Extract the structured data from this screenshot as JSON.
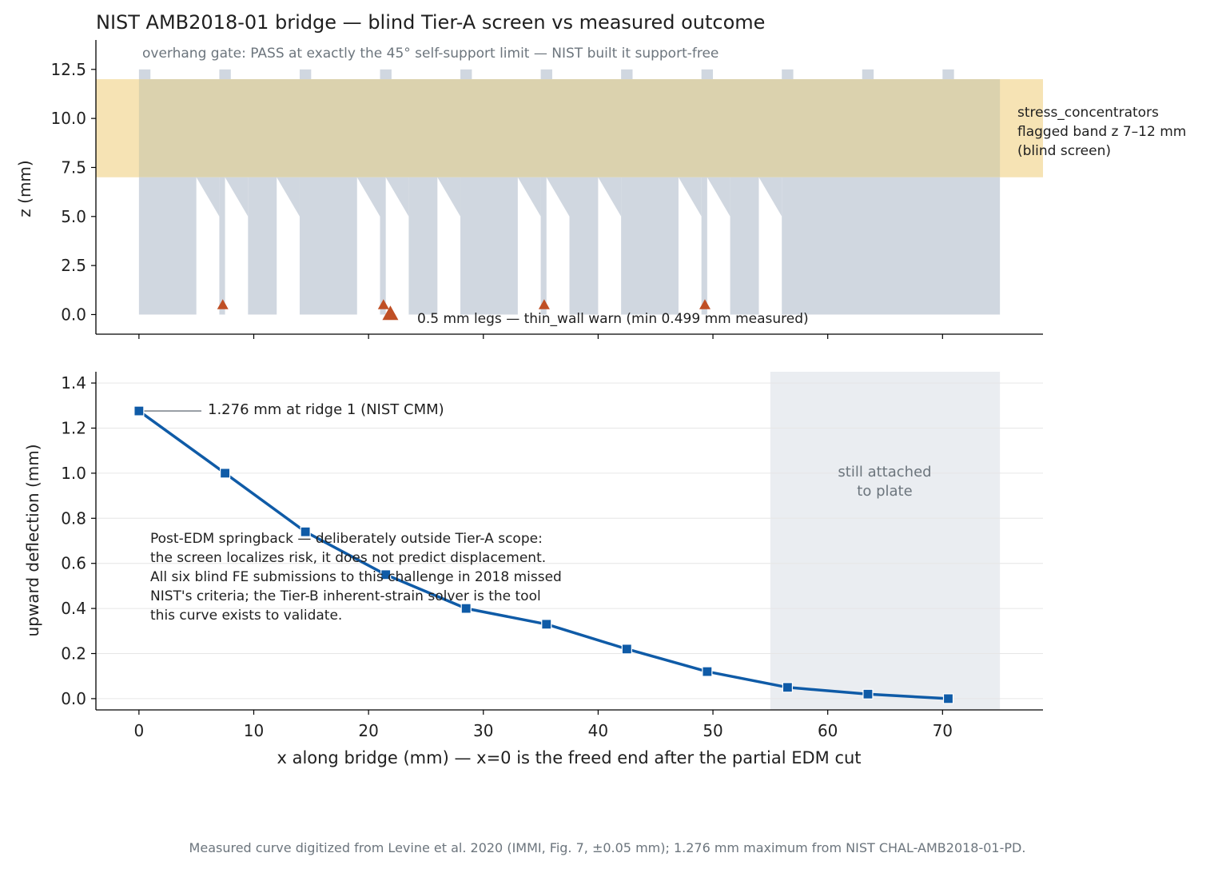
{
  "title": "NIST AMB2018-01 bridge — blind Tier-A screen vs measured outcome",
  "footer": "Measured curve digitized from Levine et al. 2020 (IMMI, Fig. 7, ±0.05 mm); 1.276 mm maximum from NIST CHAL-AMB2018-01-PD.",
  "colors": {
    "part": "#d0d7e0",
    "band": "#f6e3b4",
    "band_overlap": "#dbd2ae",
    "marker": "#bf4f25",
    "line": "#0f5ba7",
    "attached_shade": "#eaedf1",
    "annotation_gray": "#6c757d"
  },
  "chart_data": [
    {
      "type": "area",
      "panel": "top",
      "title": "NIST AMB2018-01 bridge — blind Tier-A screen vs measured outcome",
      "xlabel": "",
      "ylabel": "z (mm)",
      "xlim": [
        -3.75,
        78.75
      ],
      "ylim": [
        -1.0,
        14.0
      ],
      "yticks": [
        0.0,
        2.5,
        5.0,
        7.5,
        10.0,
        12.5
      ],
      "ytick_labels": [
        "0.0",
        "2.5",
        "5.0",
        "7.5",
        "10.0",
        "12.5"
      ],
      "xticks": [
        0,
        10,
        20,
        30,
        40,
        50,
        60,
        70
      ],
      "bridge": {
        "x_range": [
          0,
          75
        ],
        "top_z": 12.0,
        "arch_z": 7.0,
        "ridge_height": 0.5,
        "ridge_width": 1.0,
        "ridge_centers": [
          0.5,
          7.5,
          14.5,
          21.5,
          28.5,
          35.5,
          42.5,
          49.5,
          56.5,
          63.5,
          70.5
        ],
        "legs": [
          [
            0,
            5
          ],
          [
            7,
            7.5
          ],
          [
            9.5,
            12
          ],
          [
            14,
            19
          ],
          [
            21,
            21.5
          ],
          [
            23.5,
            26
          ],
          [
            28,
            33
          ],
          [
            35,
            35.5
          ],
          [
            37.5,
            40
          ],
          [
            42,
            47
          ],
          [
            49,
            49.5
          ],
          [
            51.5,
            54
          ],
          [
            56,
            75
          ]
        ],
        "slants": [
          [
            5,
            7,
            5.0
          ],
          [
            7.5,
            9.5,
            5.0
          ],
          [
            12,
            14,
            5.0
          ],
          [
            19,
            21,
            5.0
          ],
          [
            21.5,
            23.5,
            5.0
          ],
          [
            26,
            28,
            5.0
          ],
          [
            33,
            35,
            5.0
          ],
          [
            35.5,
            37.5,
            5.0
          ],
          [
            40,
            42,
            5.0
          ],
          [
            47,
            49,
            5.0
          ],
          [
            49.5,
            51.5,
            5.0
          ],
          [
            54,
            56,
            5.0
          ]
        ]
      },
      "flagged_band": {
        "z_range": [
          7.0,
          12.0
        ],
        "x_range": [
          -3.75,
          78.75
        ]
      },
      "thin_wall_markers": [
        [
          7.3,
          0.5
        ],
        [
          21.3,
          0.5
        ],
        [
          21.9,
          0.05
        ],
        [
          35.3,
          0.5
        ],
        [
          49.3,
          0.5
        ]
      ],
      "annotations": {
        "overhang": "overhang gate: PASS at exactly the 45° self-support limit — NIST built it support-free",
        "band_label": [
          "stress_concentrators",
          "flagged band z 7–12 mm",
          "(blind screen)"
        ],
        "legs_label": "0.5 mm legs — thin_wall warn (min 0.499 mm measured)"
      }
    },
    {
      "type": "line",
      "panel": "bottom",
      "xlabel": "x along bridge (mm) — x=0 is the freed end after the partial EDM cut",
      "ylabel": "upward deflection (mm)",
      "xlim": [
        -3.75,
        78.75
      ],
      "ylim": [
        -0.05,
        1.45
      ],
      "xticks": [
        0,
        10,
        20,
        30,
        40,
        50,
        60,
        70
      ],
      "xtick_labels": [
        "0",
        "10",
        "20",
        "30",
        "40",
        "50",
        "60",
        "70"
      ],
      "yticks": [
        0.0,
        0.2,
        0.4,
        0.6,
        0.8,
        1.0,
        1.2,
        1.4
      ],
      "ytick_labels": [
        "0.0",
        "0.2",
        "0.4",
        "0.6",
        "0.8",
        "1.0",
        "1.2",
        "1.4"
      ],
      "grid": "horizontal",
      "series": [
        {
          "x": [
            0,
            7.5,
            14.5,
            21.5,
            28.5,
            35.5,
            42.5,
            49.5,
            56.5,
            63.5,
            70.5
          ],
          "y": [
            1.276,
            1.0,
            0.74,
            0.55,
            0.4,
            0.33,
            0.22,
            0.12,
            0.05,
            0.02,
            0.0
          ]
        }
      ],
      "attached_region": {
        "x_range": [
          55,
          75
        ],
        "label": [
          "still attached",
          "to plate"
        ]
      },
      "annotations": {
        "max_label": "1.276 mm at ridge 1 (NIST CMM)",
        "note": [
          "Post-EDM springback — deliberately outside Tier-A scope:",
          "the screen localizes risk, it does not predict displacement.",
          "All six blind FE submissions to this challenge in 2018 missed",
          "NIST's criteria; the Tier-B inherent-strain solver is the tool",
          "this curve exists to validate."
        ]
      }
    }
  ]
}
